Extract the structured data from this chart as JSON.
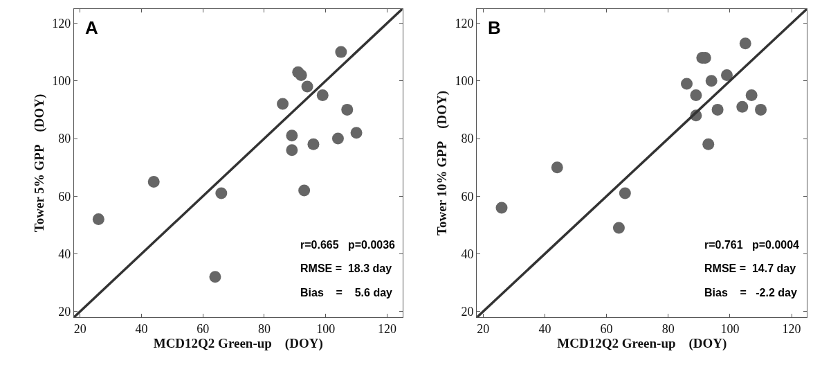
{
  "chart_data": [
    {
      "type": "scatter",
      "xlabel": "MCD12Q2 Green-up    (DOY)",
      "ylabel": "Tower 5% GPP    (DOY)",
      "xlim": [
        18,
        125
      ],
      "ylim": [
        18,
        125
      ],
      "xticks": [
        20,
        40,
        60,
        80,
        100,
        120
      ],
      "yticks": [
        20,
        40,
        60,
        80,
        100,
        120
      ],
      "annotations": [
        "A",
        "r=0.665   p=0.0036",
        "RMSE =  18.3 day",
        "Bias    =    5.6 day"
      ],
      "series": [
        {
          "marker": "circle",
          "color": "#666666",
          "x": [
            26,
            44,
            64,
            66,
            86,
            89,
            89,
            91,
            92,
            93,
            94,
            96,
            99,
            104,
            105,
            107,
            110
          ],
          "values": [
            52,
            65,
            32,
            61,
            92,
            81,
            76,
            103,
            102,
            62,
            98,
            78,
            95,
            80,
            110,
            90,
            82
          ]
        },
        {
          "type": "line",
          "color": "#333333",
          "line_style": "solid",
          "x": [
            18,
            125
          ],
          "values": [
            18,
            125
          ]
        }
      ]
    },
    {
      "type": "scatter",
      "xlabel": "MCD12Q2 Green-up    (DOY)",
      "ylabel": "Tower 10% GPP    (DOY)",
      "xlim": [
        18,
        125
      ],
      "ylim": [
        18,
        125
      ],
      "xticks": [
        20,
        40,
        60,
        80,
        100,
        120
      ],
      "yticks": [
        20,
        40,
        60,
        80,
        100,
        120
      ],
      "annotations": [
        "B",
        "r=0.761   p=0.0004",
        "RMSE =  14.7 day",
        "Bias    =   -2.2 day"
      ],
      "series": [
        {
          "marker": "circle",
          "color": "#666666",
          "x": [
            26,
            44,
            64,
            66,
            86,
            89,
            89,
            91,
            92,
            93,
            94,
            96,
            99,
            104,
            105,
            107,
            110
          ],
          "values": [
            56,
            70,
            49,
            61,
            99,
            95,
            88,
            108,
            108,
            78,
            100,
            90,
            102,
            91,
            113,
            95,
            90
          ]
        },
        {
          "type": "line",
          "color": "#333333",
          "line_style": "solid",
          "x": [
            18,
            125
          ],
          "values": [
            18,
            125
          ]
        }
      ]
    }
  ]
}
